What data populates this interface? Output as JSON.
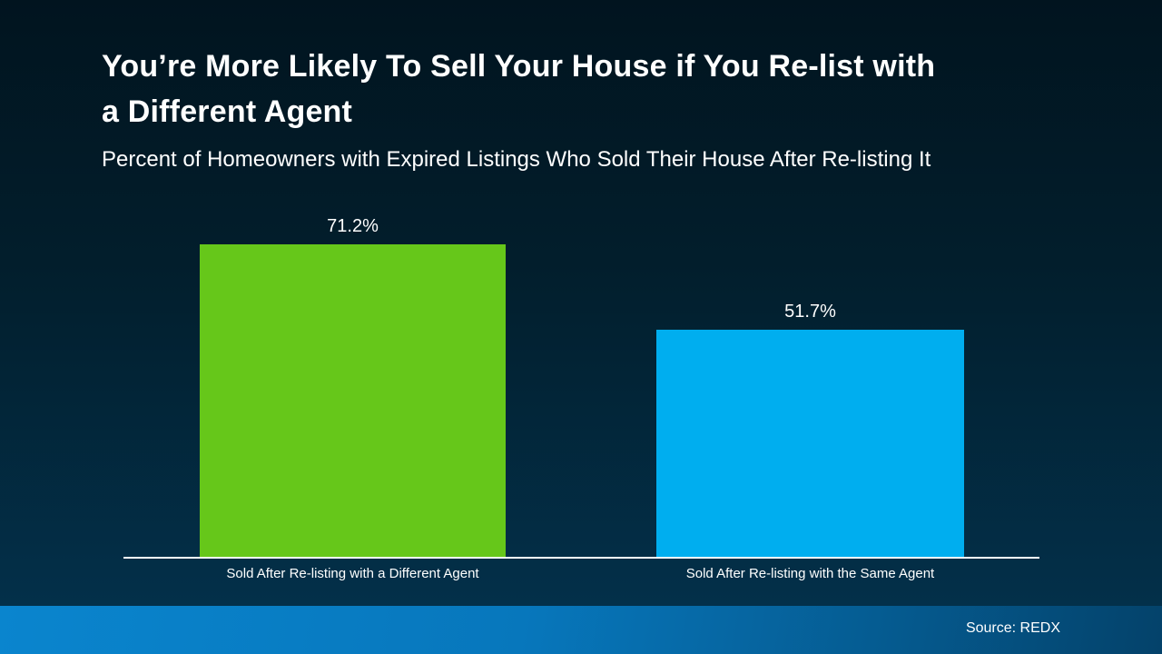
{
  "slide": {
    "title": "You’re More Likely To Sell Your House if You Re-list with a Different Agent",
    "subtitle": "Percent of Homeowners with Expired Listings Who Sold Their House After Re-listing It",
    "source": "Source: REDX"
  },
  "chart_data": {
    "type": "bar",
    "title": "You’re More Likely To Sell Your House if You Re-list with a Different Agent",
    "subtitle": "Percent of Homeowners with Expired Listings Who Sold Their House After Re-listing It",
    "categories": [
      "Sold After Re-listing with a Different Agent",
      "Sold After Re-listing with the Same Agent"
    ],
    "values": [
      71.2,
      51.7
    ],
    "value_labels": [
      "71.2%",
      "51.7%"
    ],
    "series_colors": [
      "#66C71A",
      "#00AEEF"
    ],
    "xlabel": "",
    "ylabel": "",
    "ylim": [
      0,
      75
    ],
    "grid": false,
    "legend": false,
    "annotations": [
      "Source: REDX"
    ]
  },
  "colors": {
    "background_top": "#01141F",
    "background_bottom": "#03304A",
    "footer_left": "#0A85CE",
    "footer_right": "#04426A",
    "bar_green": "#66C71A",
    "bar_blue": "#00AEEF",
    "axis_line": "#FFFFFF",
    "text": "#FFFFFF"
  }
}
